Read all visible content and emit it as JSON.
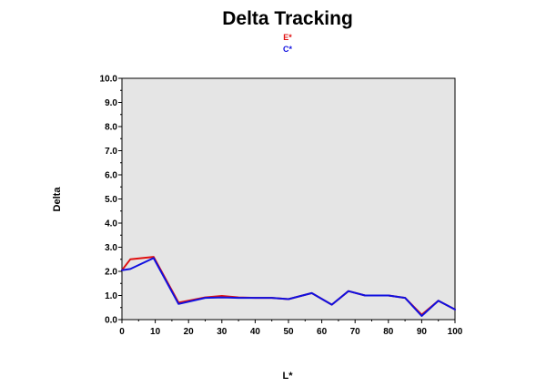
{
  "chart_data": {
    "type": "line",
    "title": "Delta Tracking",
    "xlabel": "L*",
    "ylabel": "Delta",
    "xlim": [
      0,
      100
    ],
    "ylim": [
      0,
      10
    ],
    "x_ticks": [
      "0",
      "10",
      "20",
      "30",
      "40",
      "50",
      "60",
      "70",
      "80",
      "90",
      "100"
    ],
    "y_ticks": [
      "0.0",
      "1.0",
      "2.0",
      "3.0",
      "4.0",
      "5.0",
      "6.0",
      "7.0",
      "8.0",
      "9.0",
      "10.0"
    ],
    "plot_background": "#e5e5e5",
    "legend_position": "top-center",
    "series": [
      {
        "name": "E*",
        "color": "#e01010",
        "x": [
          0,
          2.5,
          9.5,
          17,
          25,
          30,
          35,
          40,
          45,
          50,
          57,
          63,
          68,
          73,
          80,
          85,
          90,
          95,
          100
        ],
        "y": [
          2.05,
          2.5,
          2.6,
          0.7,
          0.92,
          0.98,
          0.92,
          0.9,
          0.9,
          0.85,
          1.1,
          0.62,
          1.18,
          1.0,
          1.0,
          0.9,
          0.2,
          0.78,
          0.42
        ]
      },
      {
        "name": "C*",
        "color": "#1010e0",
        "x": [
          0,
          2.5,
          9.5,
          17,
          25,
          30,
          35,
          40,
          45,
          50,
          57,
          63,
          68,
          73,
          80,
          85,
          90,
          95,
          100
        ],
        "y": [
          2.05,
          2.1,
          2.55,
          0.65,
          0.9,
          0.92,
          0.9,
          0.9,
          0.9,
          0.85,
          1.1,
          0.62,
          1.18,
          1.0,
          1.0,
          0.9,
          0.15,
          0.78,
          0.42
        ]
      }
    ]
  }
}
